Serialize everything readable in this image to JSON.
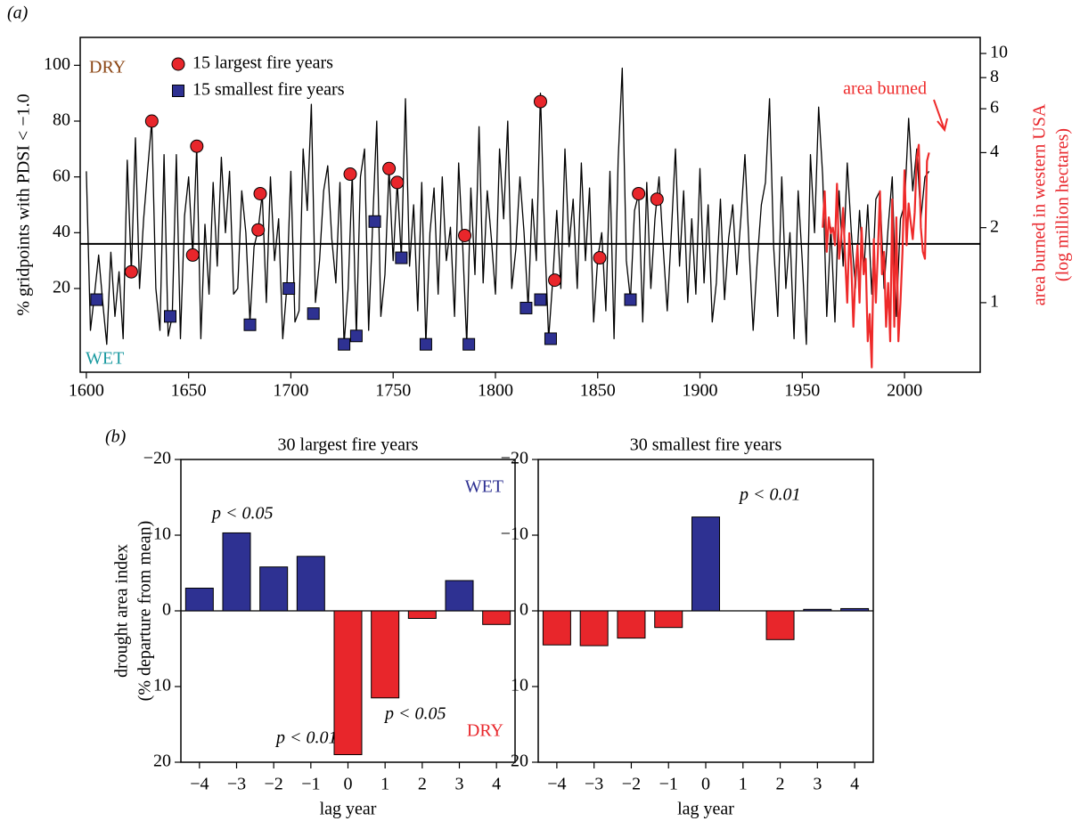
{
  "chart_data": [
    {
      "type": "line",
      "panel_label": "(a)",
      "ylabel": "% gridpoints with PDSI < −1.0",
      "y2label": [
        "area burned in western USA",
        "(log million hectares)"
      ],
      "annotations": [
        "DRY",
        "WET"
      ],
      "xlim": [
        1597,
        2037
      ],
      "xticks": [
        1600,
        1650,
        1700,
        1750,
        1800,
        1850,
        1900,
        1950,
        2000
      ],
      "ylim": [
        -10,
        110
      ],
      "yticks": [
        20,
        40,
        60,
        80,
        100
      ],
      "y2lim": [
        0.526,
        11.6
      ],
      "y2ticks": [
        1,
        2,
        4,
        6,
        8,
        10
      ],
      "y2scale": "log",
      "reference_line": 36,
      "series": [
        {
          "color": "#000000",
          "x": [
            1600,
            1602,
            1604,
            1606,
            1608,
            1610,
            1612,
            1614,
            1616,
            1618,
            1620,
            1622,
            1624,
            1626,
            1628,
            1630,
            1632,
            1634,
            1636,
            1638,
            1640,
            1642,
            1644,
            1646,
            1648,
            1650,
            1652,
            1654,
            1656,
            1658,
            1660,
            1662,
            1664,
            1666,
            1668,
            1670,
            1672,
            1674,
            1676,
            1678,
            1680,
            1682,
            1684,
            1686,
            1688,
            1690,
            1692,
            1694,
            1696,
            1698,
            1700,
            1702,
            1704,
            1706,
            1708,
            1710,
            1712,
            1714,
            1716,
            1718,
            1720,
            1722,
            1724,
            1726,
            1728,
            1730,
            1732,
            1734,
            1736,
            1738,
            1740,
            1742,
            1744,
            1746,
            1748,
            1750,
            1752,
            1754,
            1756,
            1758,
            1760,
            1762,
            1764,
            1766,
            1768,
            1770,
            1772,
            1774,
            1776,
            1778,
            1780,
            1782,
            1784,
            1786,
            1788,
            1790,
            1792,
            1794,
            1796,
            1798,
            1800,
            1802,
            1804,
            1806,
            1808,
            1810,
            1812,
            1814,
            1816,
            1818,
            1820,
            1822,
            1824,
            1826,
            1828,
            1830,
            1832,
            1834,
            1836,
            1838,
            1840,
            1842,
            1844,
            1846,
            1848,
            1850,
            1852,
            1854,
            1856,
            1858,
            1860,
            1862,
            1864,
            1866,
            1868,
            1870,
            1872,
            1874,
            1876,
            1878,
            1880,
            1882,
            1884,
            1886,
            1888,
            1890,
            1892,
            1894,
            1896,
            1898,
            1900,
            1902,
            1904,
            1906,
            1908,
            1910,
            1912,
            1914,
            1916,
            1918,
            1920,
            1922,
            1924,
            1926,
            1928,
            1930,
            1932,
            1934,
            1936,
            1938,
            1940,
            1942,
            1944,
            1946,
            1948,
            1950,
            1952,
            1954,
            1956,
            1958,
            1960,
            1962,
            1964,
            1966,
            1968,
            1970,
            1972,
            1974,
            1976,
            1978,
            1980,
            1982,
            1984,
            1986,
            1988,
            1990,
            1992,
            1994,
            1996,
            1998,
            2000,
            2002,
            2004,
            2006,
            2008,
            2010,
            2012
          ],
          "values": [
            62,
            5,
            18,
            32,
            15,
            0,
            33,
            10,
            26,
            2,
            66,
            26,
            74,
            20,
            45,
            63,
            80,
            20,
            5,
            68,
            3,
            10,
            68,
            2,
            46,
            60,
            32,
            71,
            2,
            43,
            18,
            58,
            28,
            67,
            40,
            62,
            18,
            20,
            55,
            40,
            8,
            35,
            41,
            54,
            15,
            60,
            30,
            45,
            2,
            20,
            62,
            8,
            12,
            70,
            48,
            86,
            15,
            30,
            55,
            64,
            38,
            22,
            58,
            0,
            20,
            61,
            3,
            60,
            70,
            5,
            44,
            80,
            10,
            25,
            63,
            30,
            58,
            31,
            88,
            28,
            50,
            12,
            58,
            0,
            40,
            56,
            18,
            60,
            30,
            42,
            10,
            65,
            35,
            0,
            56,
            25,
            78,
            22,
            55,
            38,
            18,
            70,
            45,
            80,
            20,
            34,
            60,
            40,
            13,
            52,
            30,
            90,
            40,
            2,
            23,
            48,
            20,
            70,
            35,
            52,
            20,
            65,
            30,
            56,
            8,
            31,
            40,
            12,
            62,
            2,
            66,
            99,
            30,
            16,
            48,
            54,
            8,
            58,
            20,
            45,
            60,
            35,
            12,
            40,
            70,
            28,
            55,
            15,
            45,
            18,
            63,
            22,
            50,
            8,
            22,
            52,
            16,
            38,
            50,
            25,
            45,
            68,
            35,
            5,
            30,
            50,
            58,
            88,
            35,
            10,
            60,
            20,
            40,
            2,
            55,
            30,
            0,
            68,
            40,
            85,
            60,
            10,
            42,
            8,
            55,
            28,
            65,
            40,
            20,
            48,
            25,
            50,
            18,
            52,
            55,
            20,
            42,
            60,
            10,
            45,
            50,
            81,
            55,
            70,
            45,
            60,
            62
          ]
        },
        {
          "name": "15 largest fire years",
          "marker": "circle",
          "color": "#e8262b",
          "x": [
            1622,
            1632,
            1652,
            1654,
            1684,
            1685,
            1729,
            1748,
            1752,
            1785,
            1822,
            1829,
            1851,
            1870,
            1879
          ],
          "values": [
            26,
            80,
            32,
            71,
            41,
            54,
            61,
            63,
            58,
            39,
            87,
            23,
            31,
            54,
            52
          ]
        },
        {
          "name": "15 smallest fire years",
          "marker": "square",
          "color": "#2e3192",
          "x": [
            1605,
            1641,
            1680,
            1699,
            1711,
            1726,
            1732,
            1741,
            1754,
            1766,
            1787,
            1815,
            1822,
            1827,
            1866
          ],
          "values": [
            16,
            10,
            7,
            20,
            11,
            0,
            3,
            44,
            31,
            0,
            0,
            13,
            16,
            2,
            16
          ]
        },
        {
          "name": "area burned",
          "axis": "y2",
          "color": "#ee2a2a",
          "x": [
            1960,
            1961,
            1962,
            1963,
            1964,
            1965,
            1966,
            1967,
            1968,
            1969,
            1970,
            1971,
            1972,
            1973,
            1974,
            1975,
            1976,
            1977,
            1978,
            1979,
            1980,
            1981,
            1982,
            1983,
            1984,
            1985,
            1986,
            1987,
            1988,
            1989,
            1990,
            1991,
            1992,
            1993,
            1994,
            1995,
            1996,
            1997,
            1998,
            1999,
            2000,
            2001,
            2002,
            2003,
            2004,
            2005,
            2006,
            2007,
            2008,
            2009,
            2010,
            2011,
            2012
          ],
          "values": [
            2.0,
            2.8,
            1.6,
            2.2,
            1.9,
            2.0,
            1.7,
            3.0,
            1.5,
            1.8,
            2.4,
            1.5,
            1.0,
            1.9,
            1.4,
            0.8,
            1.3,
            1.7,
            1.0,
            2.0,
            1.3,
            1.5,
            0.7,
            0.9,
            0.55,
            1.8,
            1.0,
            1.6,
            2.8,
            1.3,
            1.6,
            0.8,
            1.2,
            0.7,
            2.6,
            0.8,
            2.2,
            0.7,
            1.0,
            1.6,
            3.4,
            1.7,
            2.5,
            2.1,
            1.8,
            2.3,
            3.8,
            4.3,
            2.0,
            1.6,
            1.5,
            3.7,
            4.0
          ]
        }
      ]
    },
    {
      "type": "bar",
      "panel_label": "(b)",
      "title": "30 largest fire years",
      "ylabel": [
        "drought area index",
        "(% departure from mean)"
      ],
      "xlabel": "lag year",
      "annotations": [
        "p < 0.05",
        "p < 0.01",
        "p < 0.05",
        "WET",
        "DRY"
      ],
      "categories": [
        "−4",
        "−3",
        "−2",
        "−1",
        "0",
        "1",
        "2",
        "3",
        "4"
      ],
      "values": [
        -3.0,
        -10.3,
        -5.8,
        -7.2,
        19.0,
        11.5,
        1.0,
        -4.0,
        1.8
      ],
      "color_negative": "#2e3192",
      "color_positive": "#e8262b",
      "ylim": [
        -20,
        20
      ],
      "yticks": [
        {
          "value": -20,
          "label": "−20"
        },
        {
          "value": -10,
          "label": "−10"
        },
        0,
        10,
        20
      ]
    },
    {
      "type": "bar",
      "title": "30 smallest fire years",
      "xlabel": "lag year",
      "annotations": [
        "p < 0.01"
      ],
      "categories": [
        "−4",
        "−3",
        "−2",
        "−1",
        "0",
        "1",
        "2",
        "3",
        "4"
      ],
      "values": [
        4.5,
        4.6,
        3.6,
        2.2,
        -12.4,
        0,
        3.8,
        -0.2,
        -0.3
      ],
      "color_negative": "#2e3192",
      "color_positive": "#e8262b",
      "ylim": [
        -20,
        20
      ],
      "yticks": [
        {
          "value": -20,
          "label": "−20"
        },
        {
          "value": -10,
          "label": "−10"
        },
        0,
        10,
        20
      ]
    }
  ]
}
